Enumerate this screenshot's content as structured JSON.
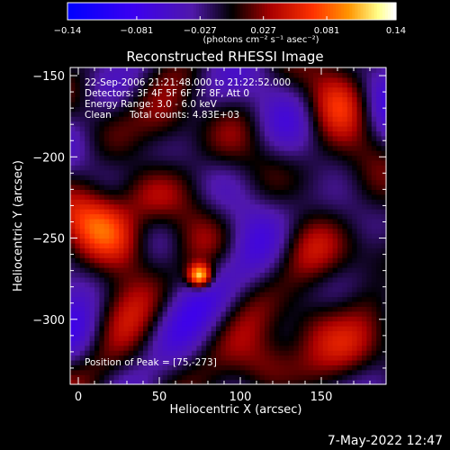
{
  "chart_data": {
    "type": "heatmap",
    "title": "Reconstructed RHESSI Image",
    "xlabel": "Heliocentric X (arcsec)",
    "ylabel": "Heliocentric Y (arcsec)",
    "xlim": [
      -5,
      190
    ],
    "ylim": [
      -340,
      -145
    ],
    "x_ticks": [
      0,
      50,
      100,
      150
    ],
    "x_tick_labels": [
      "0",
      "50",
      "100",
      "150"
    ],
    "y_ticks": [
      -150,
      -200,
      -250,
      -300
    ],
    "y_tick_labels": [
      "−150",
      "−200",
      "−250",
      "−300"
    ],
    "colorbar": {
      "min": -0.14,
      "max": 0.14,
      "ticks": [
        -0.14,
        -0.081,
        -0.027,
        0.027,
        0.081,
        0.14
      ],
      "tick_labels": [
        "−0.14",
        "−0.081",
        "−0.027",
        "0.027",
        "0.081",
        "0.14"
      ],
      "unit_label": "(photons cm⁻² s⁻¹ asec⁻²)"
    },
    "peak": [
      75,
      -273
    ],
    "sources": [
      {
        "x": 75,
        "y": -273,
        "amp": 0.14
      },
      {
        "x": 15,
        "y": -240,
        "amp": 0.07
      },
      {
        "x": 30,
        "y": -255,
        "amp": 0.06
      },
      {
        "x": 55,
        "y": -180,
        "amp": 0.06
      },
      {
        "x": 40,
        "y": -225,
        "amp": 0.05
      },
      {
        "x": 145,
        "y": -300,
        "amp": 0.06
      },
      {
        "x": 170,
        "y": -320,
        "amp": 0.05
      },
      {
        "x": 115,
        "y": -330,
        "amp": 0.06
      },
      {
        "x": 160,
        "y": -165,
        "amp": 0.05
      },
      {
        "x": 180,
        "y": -260,
        "amp": 0.05
      },
      {
        "x": 10,
        "y": -330,
        "amp": 0.04
      },
      {
        "x": 150,
        "y": -215,
        "amp": 0.04
      }
    ],
    "grid": false,
    "legend": "none"
  },
  "annotations": {
    "time_range": "22-Sep-2006 21:21:48.000 to 21:22:52.000",
    "detectors": "Detectors: 3F 4F 5F 6F 7F 8F, Att 0",
    "energy": "Energy Range: 3.0 - 6.0 keV",
    "method": "Clean",
    "counts": "Total counts: 4.83E+03",
    "peak_label": "Position of Peak = [75,-273]"
  },
  "footer": "7-May-2022 12:47",
  "colors": {
    "background": "#000000",
    "foreground": "#ffffff",
    "colormap": [
      "#0000ff",
      "#4000ff",
      "#5018b0",
      "#000000",
      "#a00000",
      "#ff3000",
      "#ff9000",
      "#ffff80",
      "#ffffff"
    ]
  }
}
